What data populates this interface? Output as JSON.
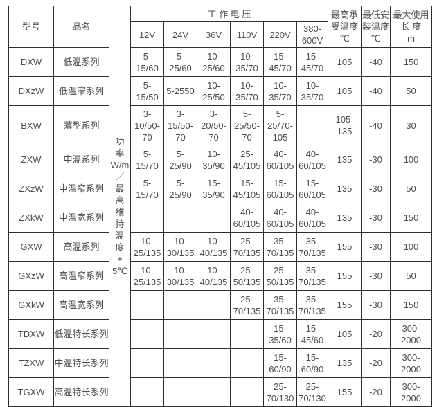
{
  "page": {
    "background": "#ffffff",
    "border_color": "#2e2e2e",
    "text_color": "#4d4d4d"
  },
  "table": {
    "header": {
      "model": "型号",
      "product": "品名",
      "power_vertical": [
        "功",
        "率",
        "W/m",
        "／",
        "最",
        "高",
        "维",
        "持",
        "温",
        "度",
        "±",
        "5℃"
      ],
      "voltage_group": "工 作 电 压",
      "voltages": [
        "12V",
        "24V",
        "36V",
        "110V",
        "220V",
        "380-\n600V"
      ],
      "max_temp": "最高承\n受温度\n℃",
      "min_install_temp": "最低安\n装温度\n℃",
      "max_length": "最大使用\n长 度\nm"
    },
    "rows": [
      {
        "model": "DXW",
        "name": "低温系列",
        "v12": "5-\n15/60",
        "v24": "5-\n25/60",
        "v36": "10-\n25/60",
        "v110": "10-\n35/70",
        "v220": "15-\n45/70",
        "v380": "15-\n45/70",
        "max_temp": "105",
        "min_install": "-40",
        "max_len": "150",
        "tall": false
      },
      {
        "model": "DXzW",
        "name": "低温窄系列",
        "v12": "5-\n15/50",
        "v24": "5-2550",
        "v36": "10-\n25/50",
        "v110": "10-\n35/70",
        "v220": "10-\n35/70",
        "v380": "10-\n35/70",
        "max_temp": "105",
        "min_install": "-40",
        "max_len": "50",
        "tall": false
      },
      {
        "model": "BXW",
        "name": "薄型系列",
        "v12": "3-\n10/50-\n70",
        "v24": "3-\n15/50-\n70",
        "v36": "3-\n20/50-\n70",
        "v110": "5-\n25/50-\n70",
        "v220": "5-\n25/70-\n105",
        "v380": "",
        "max_temp": "105-\n135",
        "min_install": "-40",
        "max_len": "30",
        "tall": true
      },
      {
        "model": "ZXW",
        "name": "中温系列",
        "v12": "5-\n15/70",
        "v24": "5-\n25/90",
        "v36": "10-\n35/90",
        "v110": "25-\n45/105",
        "v220": "40-\n60/105",
        "v380": "40-\n60/105",
        "max_temp": "135",
        "min_install": "-30",
        "max_len": "100",
        "tall": false
      },
      {
        "model": "ZXzW",
        "name": "中温窄系列",
        "v12": "5-\n15/70",
        "v24": "5-\n25/90",
        "v36": "15-\n35/90",
        "v110": "15-\n45/105",
        "v220": "15-\n60/105",
        "v380": "15-\n60/105",
        "max_temp": "135",
        "min_install": "-30",
        "max_len": "50",
        "tall": false
      },
      {
        "model": "ZXkW",
        "name": "中温宽系列",
        "v12": "",
        "v24": "",
        "v36": "",
        "v110": "40-\n60/105",
        "v220": "40-\n60/105",
        "v380": "40-\n60/105",
        "max_temp": "135",
        "min_install": "-30",
        "max_len": "150",
        "tall": false
      },
      {
        "model": "GXW",
        "name": "高温系列",
        "v12": "10-\n25/135",
        "v24": "10-\n30/135",
        "v36": "10-\n40/135",
        "v110": "25-\n70/135",
        "v220": "35-\n70/135",
        "v380": "35-\n70/135",
        "max_temp": "155",
        "min_install": "-30",
        "max_len": "100",
        "tall": false
      },
      {
        "model": "GXzW",
        "name": "高温窄系列",
        "v12": "10-\n25/135",
        "v24": "10-\n30/135",
        "v36": "10-\n40/135",
        "v110": "25-\n50/135",
        "v220": "25-\n50/135",
        "v380": "35-\n70/135",
        "max_temp": "155",
        "min_install": "-30",
        "max_len": "50",
        "tall": false
      },
      {
        "model": "GXkW",
        "name": "高温宽系列",
        "v12": "",
        "v24": "",
        "v36": "",
        "v110": "25-\n70/135",
        "v220": "35-\n70/135",
        "v380": "35-\n70/135",
        "max_temp": "155",
        "min_install": "-30",
        "max_len": "150",
        "tall": false
      },
      {
        "model": "TDXW",
        "name": "低温特长系列",
        "v12": "",
        "v24": "",
        "v36": "",
        "v110": "",
        "v220": "15-\n35/60",
        "v380": "15-\n45/60",
        "max_temp": "105",
        "min_install": "-20",
        "max_len": "300-\n2000",
        "tall": false
      },
      {
        "model": "TZXW",
        "name": "中温特长系列",
        "v12": "",
        "v24": "",
        "v36": "",
        "v110": "",
        "v220": "15-\n60/90",
        "v380": "15-\n60/90",
        "max_temp": "135",
        "min_install": "-20",
        "max_len": "300-\n2000",
        "tall": false
      },
      {
        "model": "TGXW",
        "name": "高温特长系列",
        "v12": "",
        "v24": "",
        "v36": "",
        "v110": "",
        "v220": "25-\n70/130",
        "v380": "25-\n70/130",
        "max_temp": "155",
        "min_install": "-20",
        "max_len": "300-\n2000",
        "tall": false
      }
    ]
  }
}
